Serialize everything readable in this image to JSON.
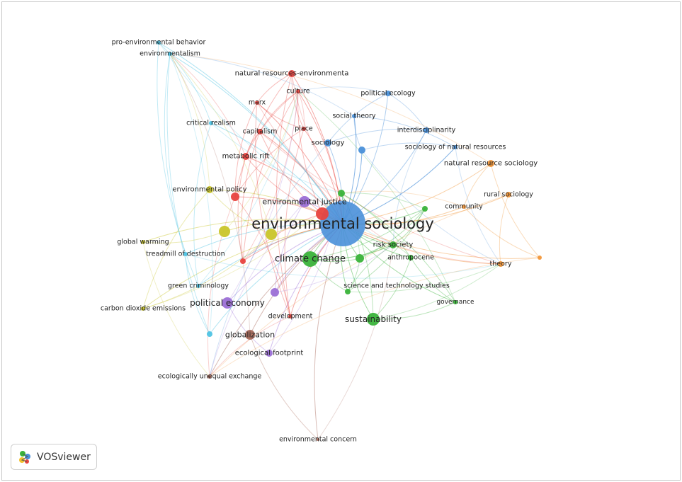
{
  "app": {
    "name": "VOSviewer"
  },
  "cluster_colors": {
    "red": "#e8443f",
    "green": "#3ab33a",
    "blue": "#4a90d9",
    "yellow": "#c9c52a",
    "purple": "#9b6fd6",
    "cyan": "#4fc3e3",
    "orange": "#f2973a",
    "brown": "#a8695a"
  },
  "network": {
    "nodes": [
      {
        "id": "environmental-sociology",
        "label": "environmental sociology",
        "cluster": "blue",
        "weight": 10
      },
      {
        "id": "climate-change",
        "label": "climate change",
        "cluster": "green",
        "weight": 5
      },
      {
        "id": "sustainability",
        "label": "sustainability",
        "cluster": "green",
        "weight": 4
      },
      {
        "id": "political-economy",
        "label": "political economy",
        "cluster": "purple",
        "weight": 4
      },
      {
        "id": "globalization",
        "label": "globalization",
        "cluster": "brown",
        "weight": 3
      },
      {
        "id": "environmental-justice",
        "label": "environmental justice",
        "cluster": "purple",
        "weight": 3
      },
      {
        "id": "ecological-footprint",
        "label": "ecological footprint",
        "cluster": "purple",
        "weight": 2
      },
      {
        "id": "risk-society",
        "label": "risk society",
        "cluster": "green",
        "weight": 2
      },
      {
        "id": "anthropocene",
        "label": "anthropocene",
        "cluster": "green",
        "weight": 2
      },
      {
        "id": "science-and-technology-studies",
        "label": "science and technology studies",
        "cluster": "green",
        "weight": 2
      },
      {
        "id": "governance",
        "label": "governance",
        "cluster": "green",
        "weight": 1
      },
      {
        "id": "natural-resource-sociology",
        "label": "natural resource sociology",
        "cluster": "orange",
        "weight": 2
      },
      {
        "id": "rural-sociology",
        "label": "rural sociology",
        "cluster": "orange",
        "weight": 2
      },
      {
        "id": "community",
        "label": "community",
        "cluster": "orange",
        "weight": 1
      },
      {
        "id": "theory",
        "label": "theory",
        "cluster": "orange",
        "weight": 1
      },
      {
        "id": "interdisciplinarity",
        "label": "interdisciplinarity",
        "cluster": "blue",
        "weight": 1
      },
      {
        "id": "sociology-of-natural-resources",
        "label": "sociology of natural resources",
        "cluster": "blue",
        "weight": 1
      },
      {
        "id": "political-ecology",
        "label": "political ecology",
        "cluster": "blue",
        "weight": 1
      },
      {
        "id": "social-theory",
        "label": "social theory",
        "cluster": "blue",
        "weight": 1
      },
      {
        "id": "sociology",
        "label": "sociology",
        "cluster": "blue",
        "weight": 2
      },
      {
        "id": "natural-resources-environmenta",
        "label": "natural resources-environmenta",
        "cluster": "red",
        "weight": 2
      },
      {
        "id": "culture",
        "label": "culture",
        "cluster": "red",
        "weight": 1
      },
      {
        "id": "marx",
        "label": "marx",
        "cluster": "red",
        "weight": 1
      },
      {
        "id": "capitalism",
        "label": "capitalism",
        "cluster": "red",
        "weight": 1
      },
      {
        "id": "place",
        "label": "place",
        "cluster": "red",
        "weight": 1
      },
      {
        "id": "metabolic-rift",
        "label": "metabolic rift",
        "cluster": "red",
        "weight": 2
      },
      {
        "id": "development",
        "label": "development",
        "cluster": "red",
        "weight": 1
      },
      {
        "id": "critical-realism",
        "label": "critical realism",
        "cluster": "cyan",
        "weight": 1
      },
      {
        "id": "environmentalism",
        "label": "environmentalism",
        "cluster": "cyan",
        "weight": 1
      },
      {
        "id": "pro-environmental-behavior",
        "label": "pro-environmental behavior",
        "cluster": "cyan",
        "weight": 1
      },
      {
        "id": "treadmill-of-destruction",
        "label": "treadmill of destruction",
        "cluster": "cyan",
        "weight": 1
      },
      {
        "id": "green-criminology",
        "label": "green criminology",
        "cluster": "cyan",
        "weight": 1
      },
      {
        "id": "environmental-policy",
        "label": "environmental policy",
        "cluster": "yellow",
        "weight": 2
      },
      {
        "id": "global-warming",
        "label": "global warming",
        "cluster": "yellow",
        "weight": 1
      },
      {
        "id": "carbon-dioxide-emissions",
        "label": "carbon dioxide emissions",
        "cluster": "yellow",
        "weight": 1
      },
      {
        "id": "ecologically-unequal-exchange",
        "label": "ecologically unequal exchange",
        "cluster": "brown",
        "weight": 1
      },
      {
        "id": "environmental-concern",
        "label": "environmental concern",
        "cluster": "brown",
        "weight": 1
      },
      {
        "id": "",
        "label": "",
        "cluster": "red",
        "weight": 3
      },
      {
        "id": "",
        "label": "",
        "cluster": "yellow",
        "weight": 3
      },
      {
        "id": "",
        "label": "",
        "cluster": "yellow",
        "weight": 3
      },
      {
        "id": "",
        "label": "",
        "cluster": "red",
        "weight": 2
      },
      {
        "id": "",
        "label": "",
        "cluster": "green",
        "weight": 2
      },
      {
        "id": "",
        "label": "",
        "cluster": "green",
        "weight": 1
      },
      {
        "id": "",
        "label": "",
        "cluster": "purple",
        "weight": 2
      },
      {
        "id": "",
        "label": "",
        "cluster": "blue",
        "weight": 2
      },
      {
        "id": "",
        "label": "",
        "cluster": "red",
        "weight": 1
      },
      {
        "id": "",
        "label": "",
        "cluster": "cyan",
        "weight": 1
      },
      {
        "id": "",
        "label": "",
        "cluster": "orange",
        "weight": 1
      },
      {
        "id": "",
        "label": "",
        "cluster": "green",
        "weight": 1
      }
    ]
  }
}
